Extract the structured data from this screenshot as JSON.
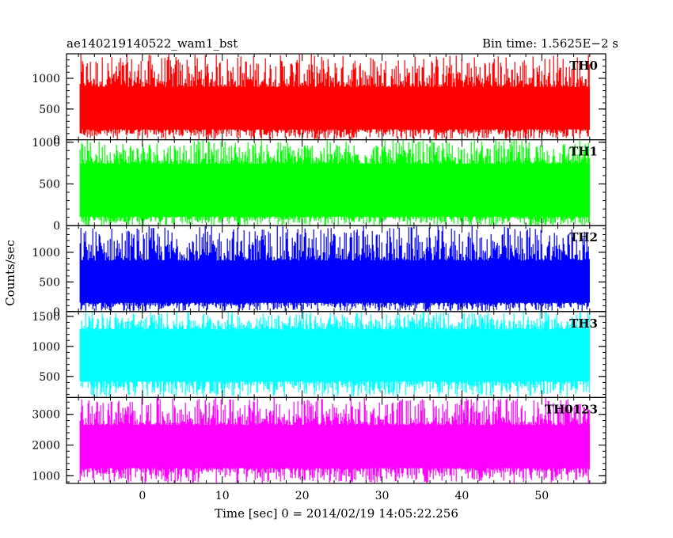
{
  "header": {
    "title": "ae140219140522_wam1_bst",
    "bin_time": "Bin time: 1.5625E−2 s"
  },
  "chart_data": {
    "type": "line",
    "title": "ae140219140522_wam1_bst",
    "subtitle": "Bin time: 1.5625E−2 s",
    "xlabel": "Time [sec] 0 = 2014/02/19 14:05:22.256",
    "ylabel": "Counts/sec",
    "xlim": [
      -9.5,
      58
    ],
    "x_data_range": [
      -7.8,
      56.0
    ],
    "xticks": [
      0,
      10,
      20,
      30,
      40,
      50
    ],
    "grid": false,
    "panels": [
      {
        "name": "TH0",
        "color": "#ff0000",
        "ylim": [
          0,
          1400
        ],
        "yticks": [
          0,
          500,
          1000
        ],
        "band_low": 170,
        "band_high": 860,
        "min_value": 0,
        "max_value": 1400
      },
      {
        "name": "TH1",
        "color": "#00ff00",
        "ylim": [
          0,
          1030
        ],
        "yticks": [
          0,
          500,
          1000
        ],
        "band_low": 110,
        "band_high": 740,
        "min_value": 0,
        "max_value": 1030
      },
      {
        "name": "TH2",
        "color": "#0000ff",
        "ylim": [
          0,
          1450
        ],
        "yticks": [
          0,
          500,
          1000
        ],
        "band_low": 150,
        "band_high": 860,
        "min_value": 0,
        "max_value": 1450
      },
      {
        "name": "TH3",
        "color": "#00ffff",
        "ylim": [
          150,
          1580
        ],
        "yticks": [
          500,
          1000,
          1500
        ],
        "band_low": 420,
        "band_high": 1280,
        "min_value": 150,
        "max_value": 1580
      },
      {
        "name": "TH0123",
        "color": "#ff00ff",
        "ylim": [
          750,
          3550
        ],
        "yticks": [
          1000,
          2000,
          3000
        ],
        "band_low": 1250,
        "band_high": 2650,
        "min_value": 750,
        "max_value": 3550
      }
    ]
  }
}
